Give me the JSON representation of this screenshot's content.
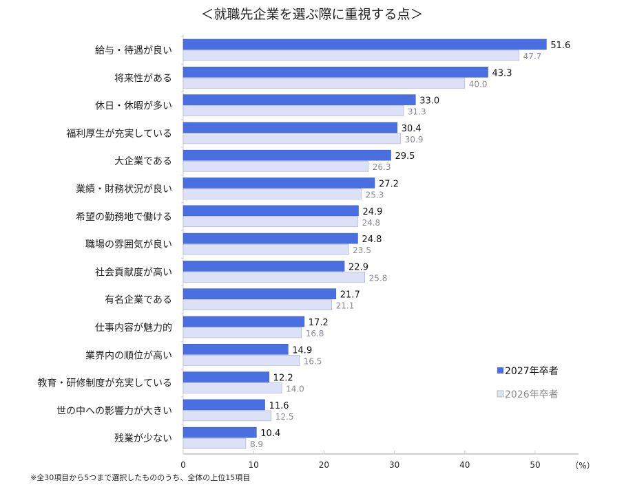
{
  "chart_data": {
    "type": "bar",
    "orientation": "horizontal",
    "title": "＜就職先企業を選ぶ際に重視する点＞",
    "unit_label": "（%）",
    "footnote": "※全30項目から5つまで選択したもののうち、全体の上位15項目",
    "categories": [
      "給与・待遇が良い",
      "将来性がある",
      "休日・休暇が多い",
      "福利厚生が充実している",
      "大企業である",
      "業績・財務状況が良い",
      "希望の勤務地で働ける",
      "職場の雰囲気が良い",
      "社会貢献度が高い",
      "有名企業である",
      "仕事内容が魅力的",
      "業界内の順位が高い",
      "教育・研修制度が充実している",
      "世の中への影響力が大きい",
      "残業が少ない"
    ],
    "series": [
      {
        "name": "2027年卒者",
        "color": "#4a6fe0",
        "values": [
          51.6,
          43.3,
          33.0,
          30.4,
          29.5,
          27.2,
          24.9,
          24.8,
          22.9,
          21.7,
          17.2,
          14.9,
          12.2,
          11.6,
          10.4
        ]
      },
      {
        "name": "2026年卒者",
        "color": "#dde1f7",
        "values": [
          47.7,
          40.0,
          31.3,
          30.9,
          26.3,
          25.3,
          24.8,
          23.5,
          25.8,
          21.1,
          16.8,
          16.5,
          14.0,
          12.5,
          8.9
        ]
      }
    ],
    "xlim": [
      0,
      55
    ],
    "xticks": [
      0,
      10,
      20,
      30,
      40,
      50
    ],
    "grid": false,
    "legend_position": "bottom-right"
  }
}
